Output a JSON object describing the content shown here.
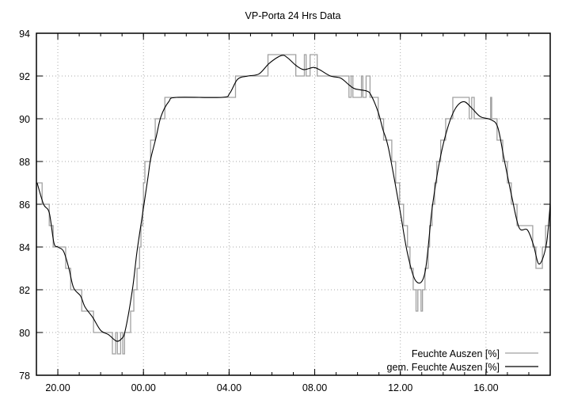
{
  "chart_data": {
    "type": "line",
    "title": "VP-Porta 24 Hrs Data",
    "xlabel": "",
    "ylabel": "",
    "xlim": [
      "19:00",
      "19:00"
    ],
    "ylim": [
      78,
      94
    ],
    "x_ticks": [
      "20.00",
      "00.00",
      "04.00",
      "08.00",
      "12.00",
      "16.00"
    ],
    "x_tick_times": [
      "20:00",
      "00:00",
      "04:00",
      "08:00",
      "12:00",
      "16:00"
    ],
    "y_ticks": [
      78,
      80,
      82,
      84,
      86,
      88,
      90,
      92,
      94
    ],
    "grid": true,
    "legend_position": "bottom-right",
    "series": [
      {
        "name": "Feuchte Auszen [%]",
        "color": "#a0a0a0",
        "style": "steps",
        "points": [
          [
            "19:00",
            87
          ],
          [
            "19:16",
            86
          ],
          [
            "19:36",
            85
          ],
          [
            "19:47",
            84
          ],
          [
            "20:22",
            83
          ],
          [
            "20:36",
            82
          ],
          [
            "21:07",
            81
          ],
          [
            "21:40",
            80
          ],
          [
            "22:33",
            79
          ],
          [
            "22:42",
            80
          ],
          [
            "22:47",
            79
          ],
          [
            "22:56",
            80
          ],
          [
            "23:02",
            79
          ],
          [
            "23:07",
            80
          ],
          [
            "23:24",
            81
          ],
          [
            "23:33",
            82
          ],
          [
            "23:42",
            83
          ],
          [
            "23:49",
            84
          ],
          [
            "23:53",
            85
          ],
          [
            "23:58",
            86
          ],
          [
            "00:00",
            87
          ],
          [
            "00:04",
            88
          ],
          [
            "00:20",
            89
          ],
          [
            "00:33",
            90
          ],
          [
            "01:00",
            91
          ],
          [
            "04:18",
            92
          ],
          [
            "05:49",
            93
          ],
          [
            "07:07",
            92
          ],
          [
            "07:31",
            93
          ],
          [
            "07:36",
            92
          ],
          [
            "07:47",
            93
          ],
          [
            "08:07",
            92
          ],
          [
            "09:36",
            91
          ],
          [
            "09:42",
            92
          ],
          [
            "09:47",
            91
          ],
          [
            "10:11",
            92
          ],
          [
            "10:15",
            91
          ],
          [
            "10:24",
            92
          ],
          [
            "10:35",
            91
          ],
          [
            "10:58",
            90
          ],
          [
            "11:13",
            89
          ],
          [
            "11:36",
            88
          ],
          [
            "11:47",
            87
          ],
          [
            "11:58",
            86
          ],
          [
            "12:09",
            85
          ],
          [
            "12:20",
            84
          ],
          [
            "12:27",
            83
          ],
          [
            "12:36",
            82
          ],
          [
            "12:44",
            81
          ],
          [
            "12:49",
            82
          ],
          [
            "12:58",
            81
          ],
          [
            "13:02",
            82
          ],
          [
            "13:09",
            83
          ],
          [
            "13:18",
            84
          ],
          [
            "13:22",
            85
          ],
          [
            "13:29",
            86
          ],
          [
            "13:36",
            87
          ],
          [
            "13:42",
            88
          ],
          [
            "13:53",
            89
          ],
          [
            "14:07",
            90
          ],
          [
            "14:27",
            91
          ],
          [
            "15:13",
            90
          ],
          [
            "15:20",
            91
          ],
          [
            "15:27",
            90
          ],
          [
            "16:13",
            91
          ],
          [
            "16:16",
            90
          ],
          [
            "16:31",
            89
          ],
          [
            "16:47",
            88
          ],
          [
            "17:00",
            87
          ],
          [
            "17:11",
            86
          ],
          [
            "17:27",
            85
          ],
          [
            "18:11",
            84
          ],
          [
            "18:20",
            83
          ],
          [
            "18:38",
            84
          ],
          [
            "18:47",
            85
          ],
          [
            "19:00",
            86
          ]
        ]
      },
      {
        "name": "gem. Feuchte Auszen [%]",
        "color": "#000000",
        "style": "smooth",
        "points": [
          [
            "19:02",
            87.0
          ],
          [
            "19:20",
            86.0
          ],
          [
            "19:36",
            85.6
          ],
          [
            "19:49",
            84.2
          ],
          [
            "20:00",
            84.0
          ],
          [
            "20:16",
            83.8
          ],
          [
            "20:31",
            83.0
          ],
          [
            "20:44",
            82.1
          ],
          [
            "21:04",
            81.7
          ],
          [
            "21:16",
            81.2
          ],
          [
            "21:38",
            80.7
          ],
          [
            "22:00",
            80.1
          ],
          [
            "22:22",
            79.9
          ],
          [
            "22:44",
            79.6
          ],
          [
            "22:58",
            79.7
          ],
          [
            "23:09",
            80.1
          ],
          [
            "23:29",
            82.0
          ],
          [
            "23:42",
            83.8
          ],
          [
            "23:58",
            85.6
          ],
          [
            "00:13",
            87.3
          ],
          [
            "00:20",
            88.1
          ],
          [
            "00:35",
            89.1
          ],
          [
            "00:49",
            90.1
          ],
          [
            "01:11",
            90.8
          ],
          [
            "01:33",
            91.0
          ],
          [
            "03:40",
            91.0
          ],
          [
            "04:02",
            91.2
          ],
          [
            "04:24",
            91.85
          ],
          [
            "04:53",
            92.0
          ],
          [
            "05:24",
            92.1
          ],
          [
            "05:53",
            92.6
          ],
          [
            "06:27",
            92.96
          ],
          [
            "06:44",
            92.85
          ],
          [
            "07:07",
            92.5
          ],
          [
            "07:29",
            92.3
          ],
          [
            "07:56",
            92.4
          ],
          [
            "08:13",
            92.3
          ],
          [
            "08:44",
            92.0
          ],
          [
            "09:13",
            91.9
          ],
          [
            "09:35",
            91.6
          ],
          [
            "09:53",
            91.4
          ],
          [
            "10:25",
            91.3
          ],
          [
            "10:38",
            91.1
          ],
          [
            "10:58",
            90.3
          ],
          [
            "11:11",
            89.5
          ],
          [
            "11:27",
            88.6
          ],
          [
            "11:58",
            85.8
          ],
          [
            "12:20",
            83.7
          ],
          [
            "12:44",
            82.4
          ],
          [
            "13:09",
            82.8
          ],
          [
            "13:29",
            85.8
          ],
          [
            "13:51",
            88.1
          ],
          [
            "14:13",
            89.6
          ],
          [
            "14:35",
            90.5
          ],
          [
            "14:58",
            90.8
          ],
          [
            "15:20",
            90.5
          ],
          [
            "15:44",
            90.1
          ],
          [
            "16:13",
            89.96
          ],
          [
            "16:33",
            89.6
          ],
          [
            "16:51",
            88.1
          ],
          [
            "17:13",
            86.3
          ],
          [
            "17:33",
            84.9
          ],
          [
            "17:56",
            84.8
          ],
          [
            "18:13",
            84.1
          ],
          [
            "18:29",
            83.2
          ],
          [
            "18:49",
            84.1
          ],
          [
            "19:00",
            86.0
          ]
        ]
      }
    ]
  }
}
